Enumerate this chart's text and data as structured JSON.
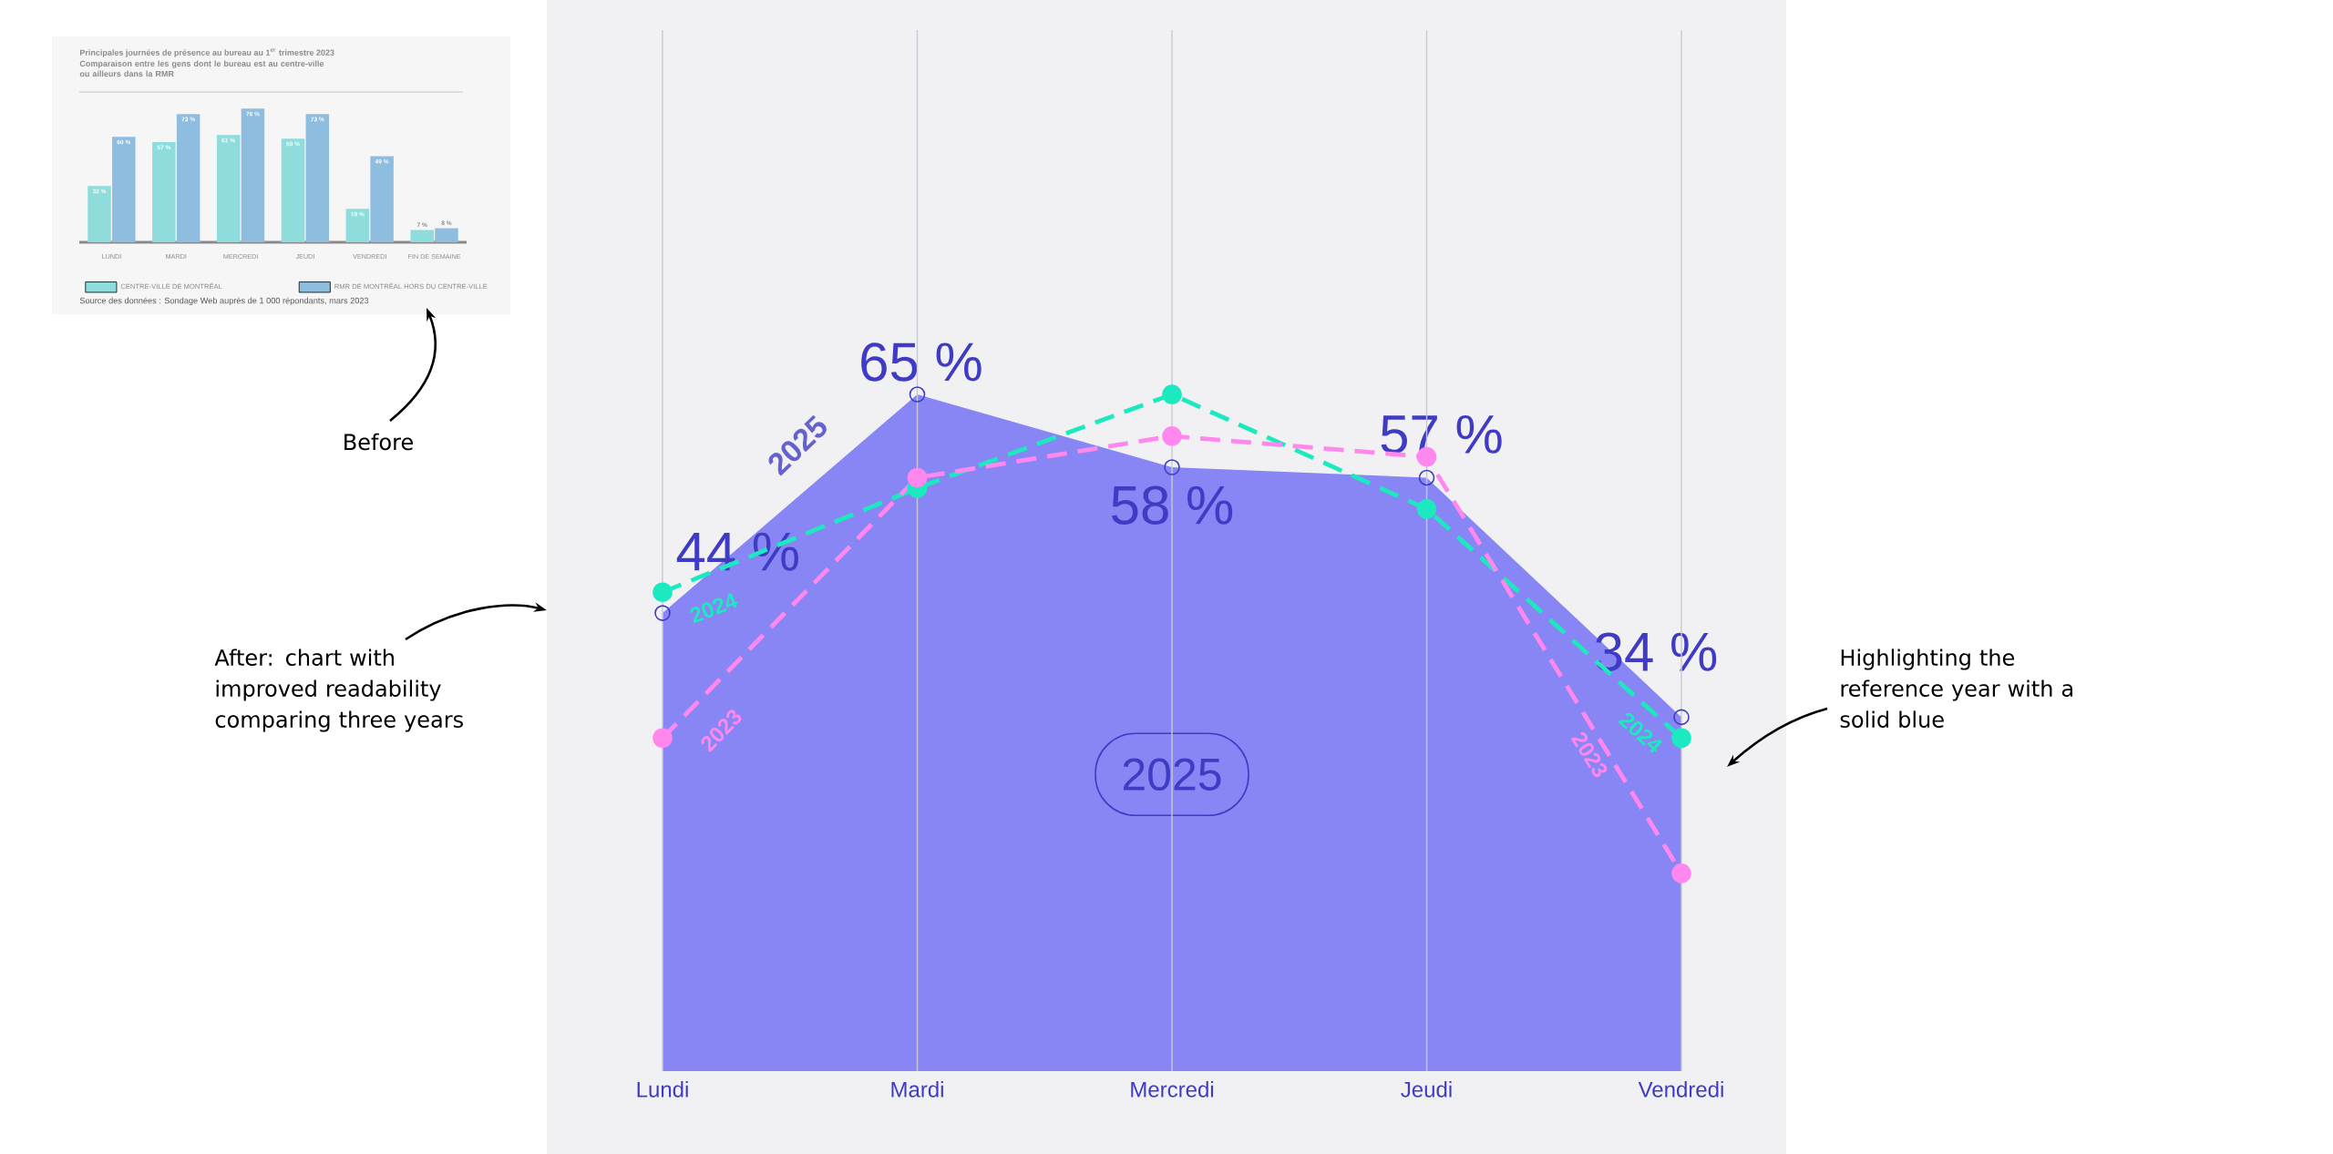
{
  "chart_data": [
    {
      "type": "bar",
      "title": "Principales journées de présence au bureau au 1$^{er}$ trimestre 2023",
      "subtitle": "Comparaison entre les gens dont le bureau est au centre-ville ou ailleurs dans la RMR",
      "categories": [
        "LUNDI",
        "MARDI",
        "MERCREDI",
        "JEUDI",
        "VENDREDI",
        "FIN DE SEMAINE"
      ],
      "ylim": [
        0,
        85
      ],
      "tick_labels": "x",
      "legend": "bottom",
      "series": [
        {
          "name": "CENTRE-VILLE DE MONTRÉAL",
          "color": "#8edcdc",
          "values": [
            32,
            57,
            61,
            59,
            19,
            7
          ],
          "value_labels": [
            "32 %",
            "57 %",
            "61 %",
            "59 %",
            "19 %",
            "7 %"
          ]
        },
        {
          "name": "RMR DE MONTRÉAL HORS DU CENTRE-VILLE",
          "color": "#8fbde0",
          "values": [
            60,
            73,
            76,
            73,
            49,
            8
          ],
          "value_labels": [
            "60 %",
            "73 %",
            "76 %",
            "73 %",
            "49 %",
            "8 %"
          ]
        }
      ],
      "annotations": [
        "Source des données : Sondage Web auprès de 1 000 répondants, mars 2023",
        "Before"
      ]
    },
    {
      "type": "area",
      "categories": [
        "Lundi",
        "Mardi",
        "Mercredi",
        "Jeudi",
        "Vendredi"
      ],
      "ylim": [
        0,
        100
      ],
      "tick_labels": "x",
      "grid": "x",
      "series": [
        {
          "name": "2025",
          "type": "area",
          "color": "#8886f4",
          "marker": "circle",
          "values": [
            44,
            65,
            58,
            57,
            34
          ],
          "value_labels": [
            "44 %",
            "65 %",
            "58 %",
            "57 %",
            "34 %"
          ]
        },
        {
          "name": "2024",
          "type": "line",
          "color": "#1de9c0",
          "marker": "circle",
          "line_style": "dashed",
          "values": [
            46,
            56,
            65,
            54,
            32
          ]
        },
        {
          "name": "2023",
          "type": "line",
          "color": "#ff88ee",
          "marker": "circle",
          "line_style": "dashed",
          "values": [
            32,
            57,
            61,
            59,
            19
          ]
        }
      ],
      "annotations": [
        "2025",
        "After: chart with improved readability comparing three years",
        "Highlighting the reference year with a solid blue"
      ]
    }
  ]
}
